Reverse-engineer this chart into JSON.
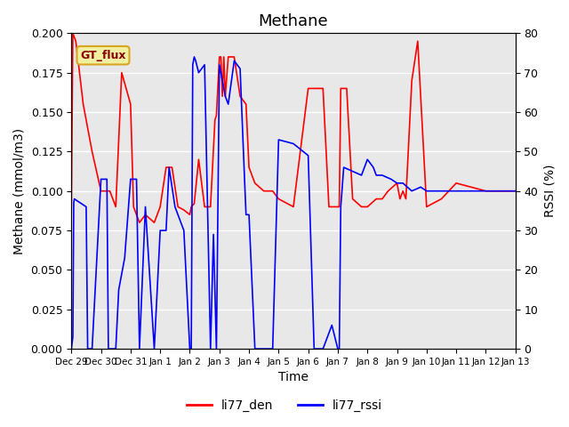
{
  "title": "Methane",
  "xlabel": "Time",
  "ylabel_left": "Methane (mmol/m3)",
  "ylabel_right": "RSSI (%)",
  "ylim_left": [
    0,
    0.2
  ],
  "ylim_right": [
    0,
    80
  ],
  "legend_labels": [
    "li77_den",
    "li77_rssi"
  ],
  "line_colors": [
    "red",
    "blue"
  ],
  "gt_flux_label": "GT_flux",
  "background_color": "#e8e8e8",
  "x_tick_labels": [
    "Dec 29",
    "Dec 30",
    "Dec 31",
    "Jan 1",
    "Jan 2",
    "Jan 3",
    "Jan 4",
    "Jan 5",
    "Jan 6",
    "Jan 7",
    "Jan 8",
    "Jan 9",
    "Jan 10",
    "Jan 11",
    "Jan 12",
    "Jan 13"
  ],
  "x_tick_positions": [
    0,
    1,
    2,
    3,
    4,
    5,
    6,
    7,
    8,
    9,
    10,
    11,
    12,
    13,
    14,
    15
  ],
  "xlim": [
    0,
    15
  ],
  "red_data_x": [
    0.0,
    0.05,
    0.15,
    0.4,
    0.7,
    1.0,
    1.3,
    1.5,
    1.7,
    2.0,
    2.1,
    2.3,
    2.5,
    2.8,
    3.0,
    3.2,
    3.4,
    3.6,
    3.8,
    4.0,
    4.05,
    4.15,
    4.3,
    4.5,
    4.7,
    4.85,
    4.9,
    5.0,
    5.05,
    5.1,
    5.15,
    5.2,
    5.3,
    5.5,
    5.7,
    5.9,
    6.0,
    6.2,
    6.5,
    6.8,
    7.0,
    7.5,
    8.0,
    8.3,
    8.5,
    8.7,
    9.0,
    9.05,
    9.1,
    9.3,
    9.5,
    9.8,
    10.0,
    10.3,
    10.5,
    10.7,
    11.0,
    11.1,
    11.2,
    11.3,
    11.5,
    11.7,
    12.0,
    12.5,
    13.0,
    14.0,
    15.0
  ],
  "red_data_y": [
    0.09,
    0.2,
    0.195,
    0.155,
    0.125,
    0.1,
    0.1,
    0.09,
    0.175,
    0.155,
    0.09,
    0.08,
    0.085,
    0.08,
    0.09,
    0.115,
    0.115,
    0.09,
    0.088,
    0.085,
    0.09,
    0.092,
    0.12,
    0.09,
    0.09,
    0.145,
    0.148,
    0.185,
    0.185,
    0.16,
    0.185,
    0.16,
    0.185,
    0.185,
    0.16,
    0.155,
    0.115,
    0.105,
    0.1,
    0.1,
    0.095,
    0.09,
    0.165,
    0.165,
    0.165,
    0.09,
    0.09,
    0.09,
    0.165,
    0.165,
    0.095,
    0.09,
    0.09,
    0.095,
    0.095,
    0.1,
    0.105,
    0.095,
    0.1,
    0.095,
    0.17,
    0.195,
    0.09,
    0.095,
    0.105,
    0.1,
    0.1
  ],
  "blue_data_x": [
    0.0,
    0.05,
    0.08,
    0.1,
    0.3,
    0.5,
    0.55,
    0.7,
    1.0,
    1.2,
    1.25,
    1.5,
    1.6,
    1.8,
    2.0,
    2.2,
    2.3,
    2.5,
    2.8,
    3.0,
    3.2,
    3.3,
    3.5,
    3.8,
    4.0,
    4.05,
    4.1,
    4.15,
    4.2,
    4.3,
    4.5,
    4.7,
    4.8,
    4.9,
    5.0,
    5.05,
    5.1,
    5.15,
    5.2,
    5.3,
    5.5,
    5.7,
    5.85,
    5.9,
    6.0,
    6.2,
    6.5,
    6.8,
    7.0,
    7.5,
    8.0,
    8.2,
    8.5,
    8.8,
    9.0,
    9.05,
    9.1,
    9.2,
    9.5,
    9.8,
    10.0,
    10.2,
    10.3,
    10.5,
    10.8,
    11.0,
    11.2,
    11.5,
    11.8,
    12.0,
    12.5,
    13.0,
    14.0,
    15.0
  ],
  "blue_data_y": [
    0,
    3,
    37,
    38,
    37,
    36,
    0,
    0,
    43,
    43,
    0,
    0,
    15,
    23,
    43,
    43,
    0,
    36,
    0,
    30,
    30,
    46,
    36,
    30,
    0,
    0,
    72,
    74,
    73,
    70,
    72,
    0,
    29,
    0,
    72,
    70,
    68,
    66,
    64,
    62,
    73,
    71,
    43,
    34,
    34,
    0,
    0,
    0,
    53,
    52,
    49,
    0,
    0,
    6,
    0,
    0,
    36,
    46,
    45,
    44,
    48,
    46,
    44,
    44,
    43,
    42,
    42,
    40,
    41,
    40,
    40,
    40,
    40,
    40
  ]
}
